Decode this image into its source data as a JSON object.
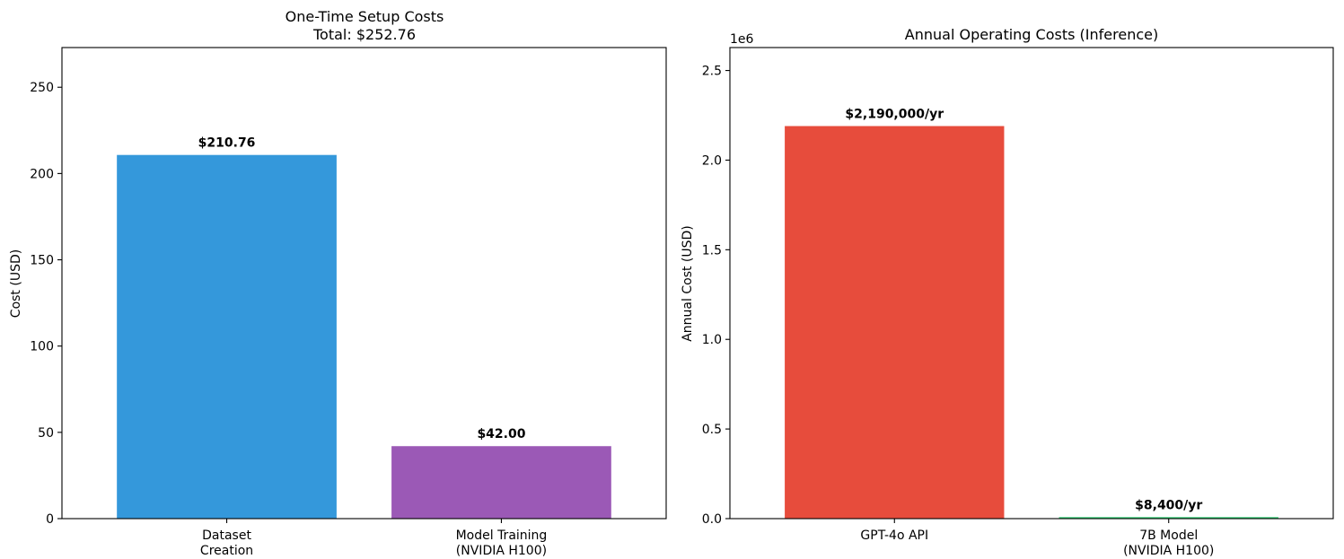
{
  "chart_data": [
    {
      "type": "bar",
      "title": "One-Time Setup Costs",
      "subtitle": "Total: $252.76",
      "xlabel": "",
      "ylabel": "Cost (USD)",
      "ylim": [
        0,
        273
      ],
      "yticks": [
        0,
        50,
        100,
        150,
        200,
        250
      ],
      "ytick_labels": [
        "0",
        "50",
        "100",
        "150",
        "200",
        "250"
      ],
      "y_offset_text": "",
      "grid": false,
      "categories": [
        [
          "Dataset",
          "Creation"
        ],
        [
          "Model Training",
          "(NVIDIA H100)"
        ]
      ],
      "values": [
        210.76,
        42.0
      ],
      "value_labels": [
        "$210.76",
        "$42.00"
      ],
      "colors": [
        "#3498db",
        "#9b59b6"
      ]
    },
    {
      "type": "bar",
      "title": "Annual Operating Costs (Inference)",
      "subtitle": "",
      "xlabel": "",
      "ylabel": "Annual Cost (USD)",
      "ylim": [
        0,
        2628000
      ],
      "yticks": [
        0,
        500000,
        1000000,
        1500000,
        2000000,
        2500000
      ],
      "ytick_labels": [
        "0.0",
        "0.5",
        "1.0",
        "1.5",
        "2.0",
        "2.5"
      ],
      "y_offset_text": "1e6",
      "grid": false,
      "categories": [
        [
          "GPT-4o API"
        ],
        [
          "7B Model",
          "(NVIDIA H100)"
        ]
      ],
      "values": [
        2190000,
        8400
      ],
      "value_labels": [
        "$2,190,000/yr",
        "$8,400/yr"
      ],
      "colors": [
        "#e74c3c",
        "#2ecc71"
      ]
    }
  ]
}
